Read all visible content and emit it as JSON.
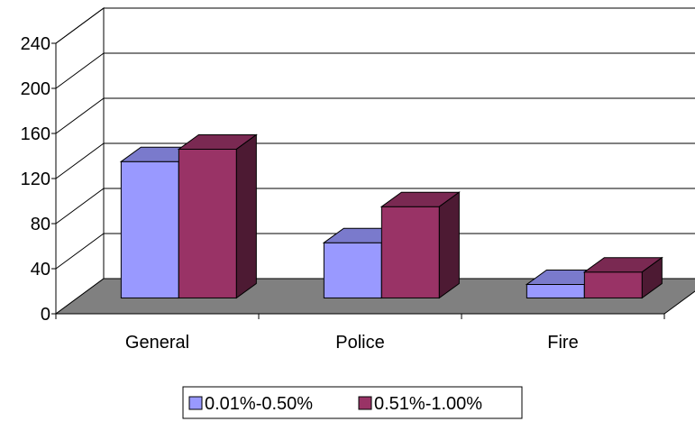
{
  "chart_data": {
    "type": "bar",
    "style": "3d-clustered-column",
    "title": "",
    "xlabel": "",
    "ylabel": "",
    "categories": [
      "General",
      "Police",
      "Fire"
    ],
    "series": [
      {
        "name": "0.01%-0.50%",
        "values": [
          121,
          49,
          12
        ],
        "color": "#9999ff"
      },
      {
        "name": "0.51%-1.00%",
        "values": [
          132,
          81,
          23
        ],
        "color": "#993366"
      }
    ],
    "ylim": [
      0,
      240
    ],
    "yticks": [
      0,
      40,
      80,
      120,
      160,
      200,
      240
    ],
    "grid": true,
    "floor_color": "#808080",
    "legend_position": "bottom"
  }
}
